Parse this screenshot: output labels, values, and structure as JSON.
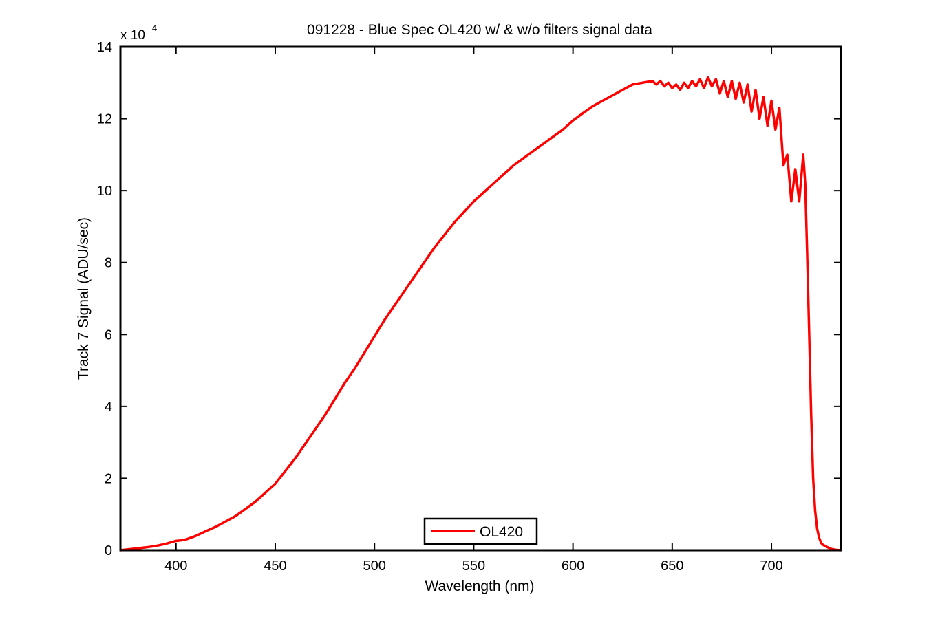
{
  "chart_data": {
    "type": "line",
    "title": "091228 - Blue Spec OL420 w/ & w/o filters signal data",
    "xlabel": "Wavelength (nm)",
    "ylabel": "Track 7 Signal (ADU/sec)",
    "y_multiplier_label": "x 10",
    "y_multiplier_exponent": "4",
    "xlim": [
      372,
      735
    ],
    "ylim": [
      0,
      140000
    ],
    "x_ticks": [
      400,
      450,
      500,
      550,
      600,
      650,
      700
    ],
    "y_ticks": [
      0,
      20000,
      40000,
      60000,
      80000,
      100000,
      120000,
      140000
    ],
    "y_tick_labels": [
      "0",
      "2",
      "4",
      "6",
      "8",
      "10",
      "12",
      "14"
    ],
    "grid": false,
    "legend_position": "bottom-center",
    "series": [
      {
        "name": "OL420",
        "color": "#ff0000",
        "x": [
          372,
          380,
          385,
          390,
          395,
          398,
          400,
          402,
          405,
          410,
          415,
          420,
          425,
          430,
          435,
          440,
          445,
          450,
          455,
          460,
          465,
          470,
          475,
          480,
          485,
          490,
          495,
          500,
          505,
          510,
          515,
          520,
          525,
          530,
          535,
          540,
          545,
          550,
          555,
          560,
          565,
          570,
          575,
          580,
          585,
          590,
          595,
          600,
          605,
          610,
          615,
          620,
          625,
          630,
          635,
          640,
          642,
          644,
          646,
          648,
          650,
          652,
          654,
          656,
          658,
          660,
          662,
          664,
          666,
          668,
          670,
          672,
          674,
          676,
          678,
          680,
          682,
          684,
          686,
          688,
          690,
          692,
          694,
          696,
          698,
          700,
          702,
          704,
          706,
          708,
          710,
          712,
          714,
          716,
          717,
          718,
          719,
          720,
          721,
          722,
          723,
          724,
          725,
          726,
          728,
          730,
          732,
          735
        ],
        "y": [
          0,
          500,
          800,
          1200,
          1800,
          2300,
          2600,
          2700,
          3000,
          4000,
          5300,
          6500,
          8000,
          9500,
          11500,
          13500,
          16000,
          18500,
          22000,
          25500,
          29500,
          33500,
          37500,
          42000,
          46500,
          50500,
          55000,
          59500,
          64000,
          68000,
          72000,
          76000,
          80000,
          84000,
          87500,
          91000,
          94000,
          97000,
          99500,
          102000,
          104500,
          107000,
          109000,
          111000,
          113000,
          115000,
          117000,
          119500,
          121500,
          123500,
          125000,
          126500,
          128000,
          129500,
          130000,
          130500,
          129500,
          130500,
          129000,
          130000,
          128500,
          129500,
          128000,
          130000,
          128500,
          130500,
          129000,
          131000,
          128500,
          131500,
          129000,
          131000,
          127000,
          130500,
          126000,
          130500,
          125500,
          130000,
          124500,
          129500,
          122000,
          128000,
          120000,
          126000,
          118000,
          125000,
          117000,
          123000,
          107000,
          110000,
          97000,
          106000,
          97000,
          110000,
          102000,
          82000,
          60000,
          38000,
          20000,
          11000,
          6000,
          3500,
          2000,
          1500,
          900,
          400,
          150,
          0
        ]
      }
    ]
  }
}
